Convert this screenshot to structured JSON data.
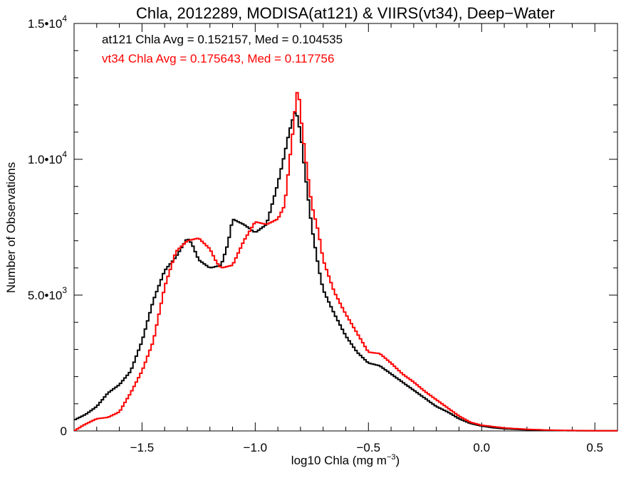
{
  "chart_data": {
    "type": "line",
    "title": "Chla, 2012289, MODISA(at121) & VIIRS(vt34), Deep−Water",
    "xlabel": "log10 Chla (mg m",
    "xlabel_sup": "−3",
    "xlabel_close": ")",
    "ylabel": "Number of Observations",
    "xlim": [
      -1.8,
      0.6
    ],
    "ylim": [
      0,
      15000
    ],
    "step": true,
    "grid": false,
    "x_ticks": [
      {
        "value": -1.5,
        "label": "−1.5"
      },
      {
        "value": -1.0,
        "label": "−1.0"
      },
      {
        "value": -0.5,
        "label": "−0.5"
      },
      {
        "value": 0.0,
        "label": "0.0"
      },
      {
        "value": 0.5,
        "label": "0.5"
      }
    ],
    "y_ticks": [
      {
        "value": 0,
        "label": "0",
        "exp": ""
      },
      {
        "value": 5000,
        "label": "5.0•10",
        "exp": "3"
      },
      {
        "value": 10000,
        "label": "1.0•10",
        "exp": "4"
      },
      {
        "value": 15000,
        "label": "1.5•10",
        "exp": "4"
      }
    ],
    "annotations": [
      {
        "text": "at121 Chla Avg = 0.152157, Med = 0.104535",
        "color": "#000000"
      },
      {
        "text": "vt34 Chla Avg = 0.175643, Med = 0.117756",
        "color": "#ff0000"
      }
    ],
    "series": [
      {
        "color": "#000000",
        "x": [
          -1.8,
          -1.75,
          -1.7,
          -1.65,
          -1.6,
          -1.55,
          -1.5,
          -1.45,
          -1.4,
          -1.35,
          -1.3,
          -1.28,
          -1.25,
          -1.2,
          -1.15,
          -1.12,
          -1.1,
          -1.05,
          -1.0,
          -0.95,
          -0.9,
          -0.87,
          -0.85,
          -0.83,
          -0.82,
          -0.8,
          -0.78,
          -0.75,
          -0.72,
          -0.7,
          -0.65,
          -0.6,
          -0.55,
          -0.5,
          -0.45,
          -0.4,
          -0.35,
          -0.3,
          -0.25,
          -0.2,
          -0.15,
          -0.1,
          -0.05,
          0.0,
          0.05,
          0.1,
          0.2,
          0.3,
          0.4,
          0.5,
          0.6
        ],
        "y": [
          400,
          600,
          900,
          1400,
          1700,
          2200,
          3300,
          4800,
          5900,
          6400,
          7100,
          6900,
          6300,
          6000,
          6100,
          6900,
          7800,
          7600,
          7300,
          7600,
          9100,
          10200,
          11000,
          11600,
          11800,
          11000,
          9500,
          7500,
          6000,
          5200,
          4300,
          3500,
          2900,
          2500,
          2400,
          2100,
          1800,
          1500,
          1200,
          900,
          700,
          450,
          280,
          180,
          120,
          80,
          40,
          20,
          10,
          5,
          5
        ]
      },
      {
        "color": "#ff0000",
        "x": [
          -1.8,
          -1.75,
          -1.7,
          -1.65,
          -1.6,
          -1.55,
          -1.5,
          -1.45,
          -1.4,
          -1.35,
          -1.3,
          -1.25,
          -1.2,
          -1.17,
          -1.15,
          -1.1,
          -1.05,
          -1.0,
          -0.95,
          -0.9,
          -0.87,
          -0.85,
          -0.83,
          -0.82,
          -0.81,
          -0.8,
          -0.78,
          -0.75,
          -0.72,
          -0.7,
          -0.65,
          -0.6,
          -0.55,
          -0.5,
          -0.45,
          -0.4,
          -0.35,
          -0.3,
          -0.25,
          -0.2,
          -0.15,
          -0.1,
          -0.05,
          0.0,
          0.05,
          0.1,
          0.2,
          0.3,
          0.4,
          0.5,
          0.6
        ],
        "y": [
          0,
          250,
          450,
          500,
          700,
          1400,
          2200,
          3300,
          5300,
          6600,
          7000,
          7100,
          6700,
          6200,
          6000,
          6100,
          7000,
          7700,
          7600,
          7800,
          8300,
          9800,
          11300,
          12200,
          12700,
          11700,
          10200,
          8300,
          7300,
          6300,
          5100,
          4300,
          3600,
          2900,
          2850,
          2500,
          2100,
          1800,
          1450,
          1150,
          850,
          550,
          320,
          210,
          160,
          110,
          60,
          30,
          15,
          8,
          5
        ]
      }
    ]
  }
}
